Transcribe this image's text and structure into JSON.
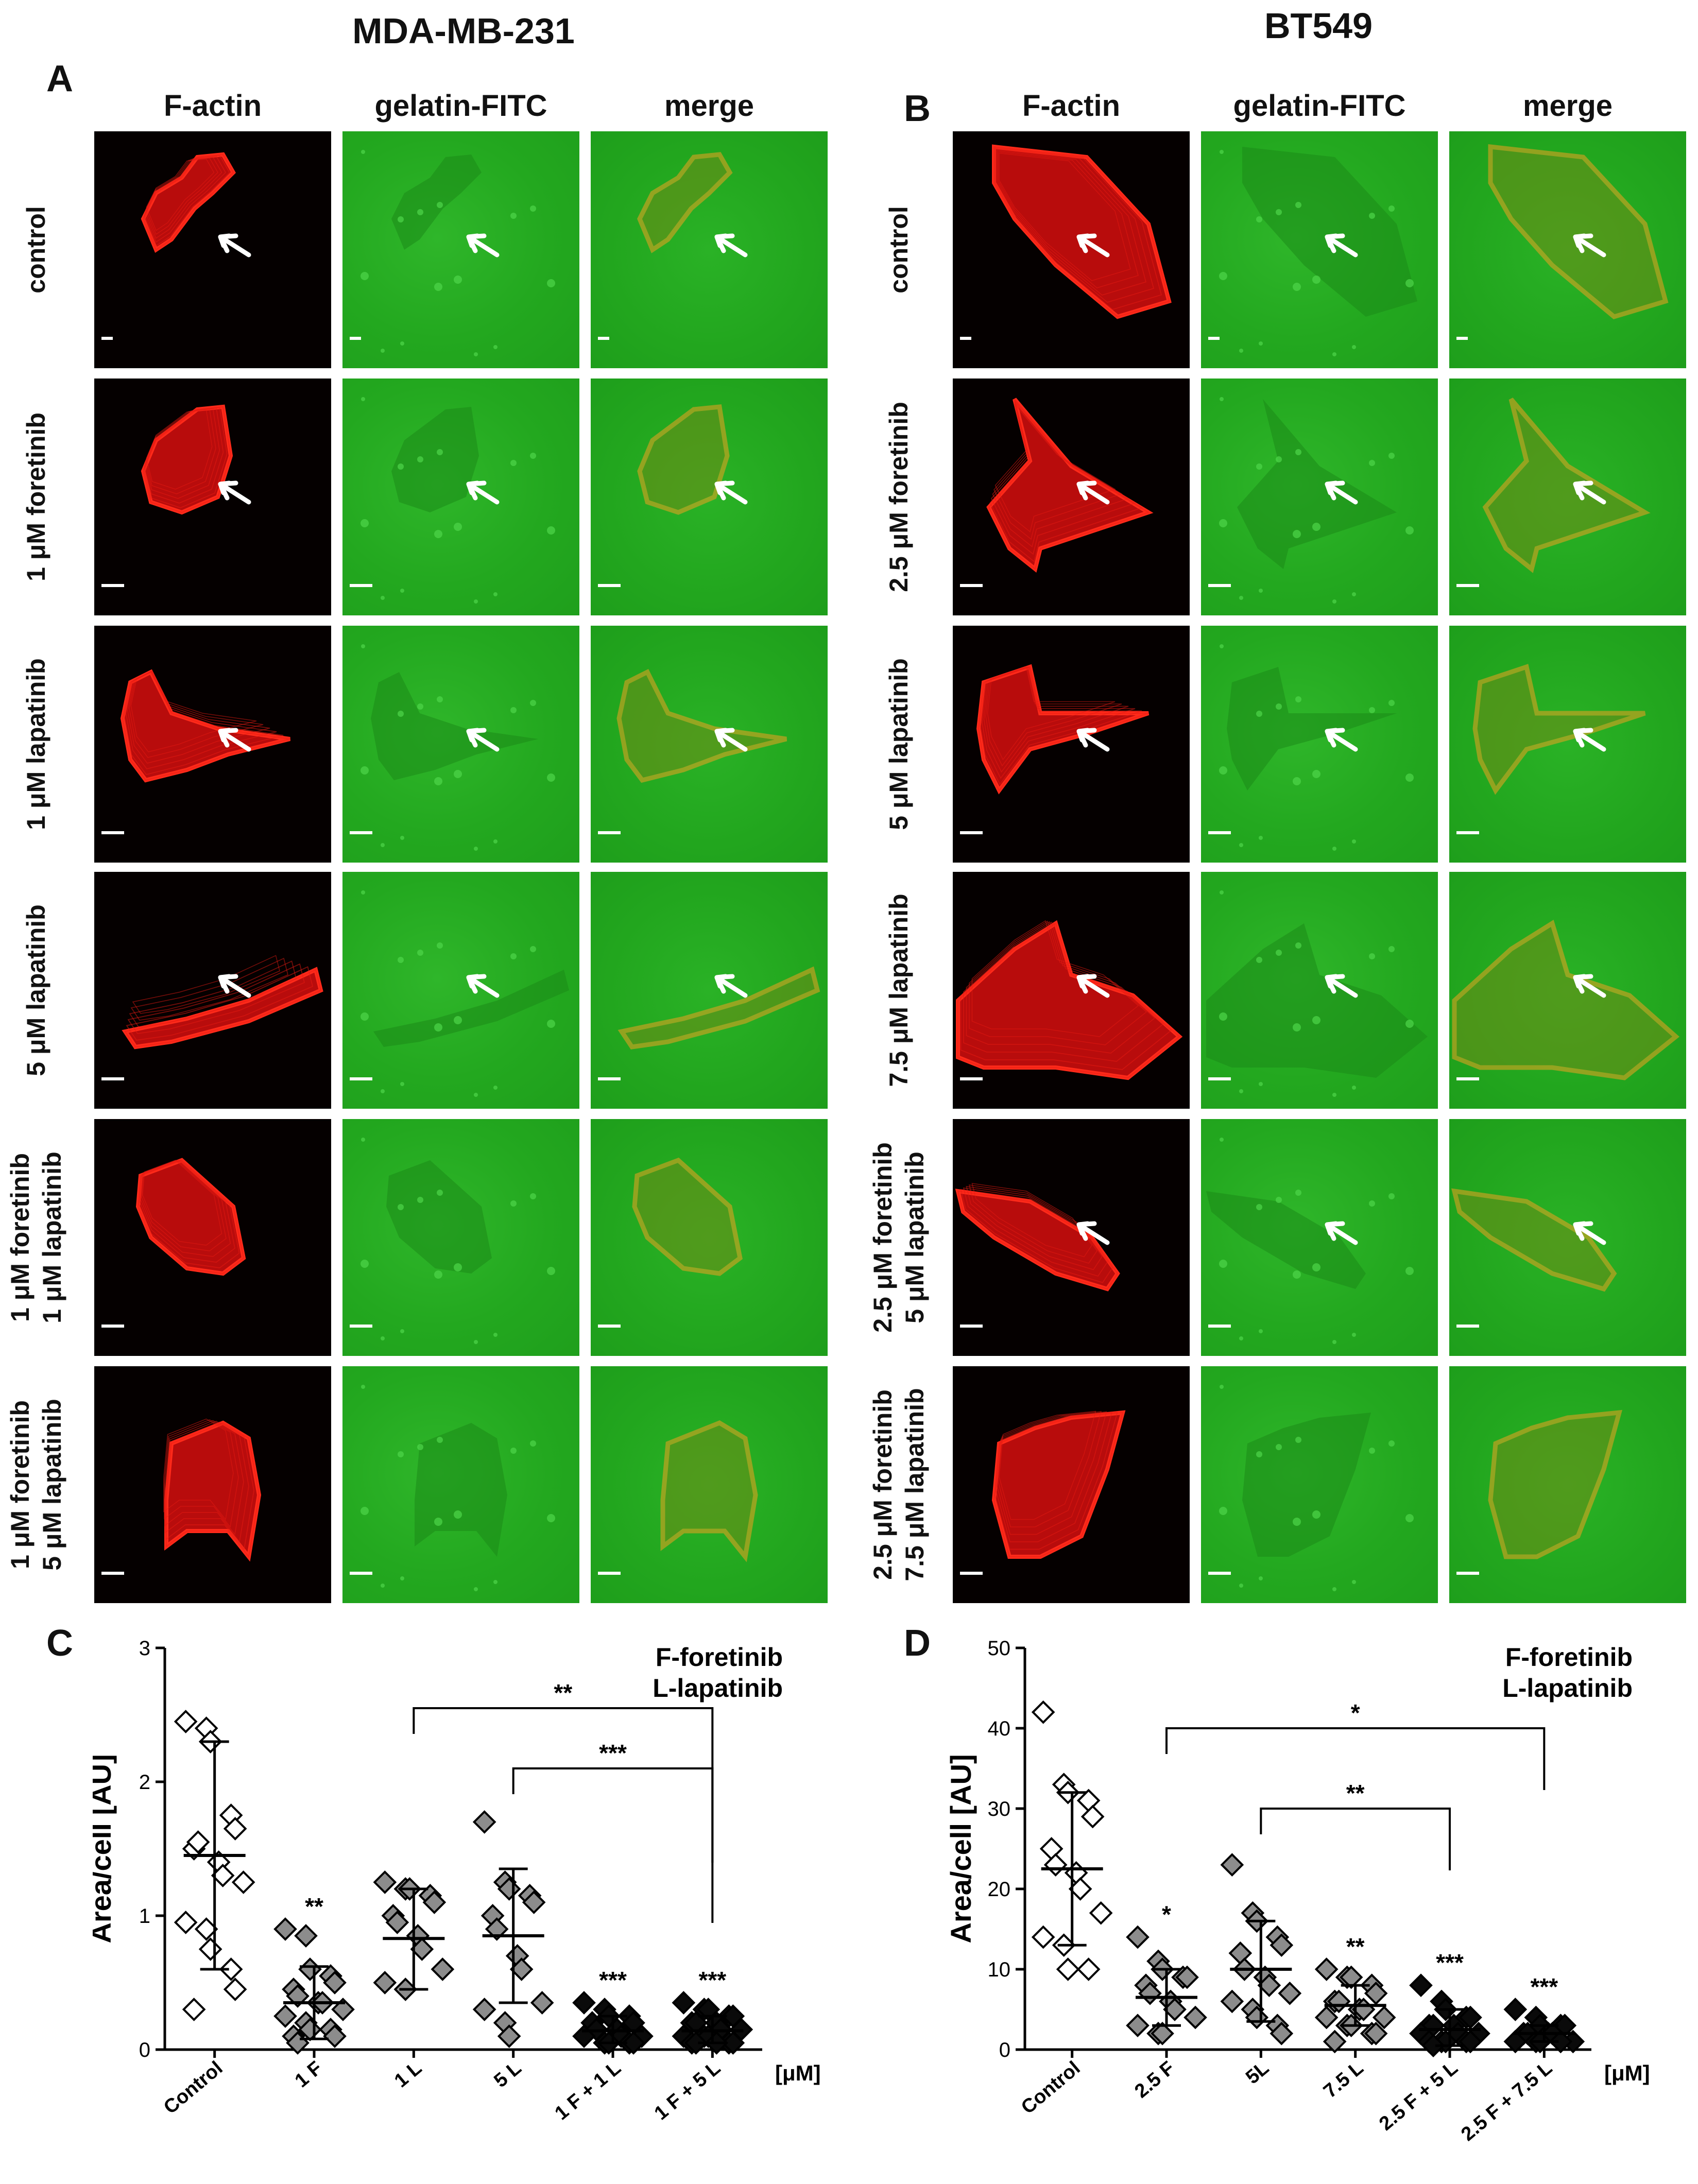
{
  "panelA": {
    "cell_line": "MDA-MB-231",
    "letter": "A",
    "columns": [
      "F-actin",
      "gelatin-FITC",
      "merge"
    ],
    "rows": [
      {
        "label": [
          "control"
        ],
        "arrow": true
      },
      {
        "label": [
          "1 μM foretinib"
        ],
        "arrow": true
      },
      {
        "label": [
          "1 μM lapatinib"
        ],
        "arrow": true
      },
      {
        "label": [
          "5 μM lapatinib"
        ],
        "arrow": true
      },
      {
        "label": [
          "1 μM  foretinib",
          "1 μM lapatinib"
        ],
        "arrow": false
      },
      {
        "label": [
          "1 μM foretinib",
          "5 μM lapatinib"
        ],
        "arrow": false
      }
    ]
  },
  "panelB": {
    "cell_line": "BT549",
    "letter": "B",
    "columns": [
      "F-actin",
      "gelatin-FITC",
      "merge"
    ],
    "rows": [
      {
        "label": [
          "control"
        ],
        "arrow": true
      },
      {
        "label": [
          "2.5 μM foretinib"
        ],
        "arrow": true
      },
      {
        "label": [
          "5 μM lapatinib"
        ],
        "arrow": true
      },
      {
        "label": [
          "7.5 μM lapatinib"
        ],
        "arrow": true
      },
      {
        "label": [
          "2.5 μM  foretinib",
          "5 μM lapatinib"
        ],
        "arrow": true
      },
      {
        "label": [
          "2.5 μM foretinib",
          "7.5 μM lapatinib"
        ],
        "arrow": false
      }
    ]
  },
  "chart_data": [
    {
      "panel": "C",
      "type": "scatter",
      "ylabel": "Area/cell [AU]",
      "ylim": [
        0,
        3
      ],
      "yticks": [
        0,
        1,
        2,
        3
      ],
      "categories": [
        "Control",
        "1 F",
        "1 L",
        "5 L",
        "1 F + 1 L",
        "1 F + 5 L"
      ],
      "unit_label": "[μM]",
      "legend": [
        "F-foretinib",
        "L-lapatinib"
      ],
      "series": [
        {
          "marker": "open",
          "values": [
            2.45,
            2.4,
            2.3,
            1.75,
            1.65,
            1.5,
            1.55,
            1.4,
            1.3,
            1.25,
            0.95,
            0.9,
            0.75,
            0.6,
            0.45,
            0.3
          ]
        },
        {
          "marker": "gray",
          "values": [
            0.9,
            0.85,
            0.6,
            0.55,
            0.5,
            0.45,
            0.4,
            0.35,
            0.35,
            0.3,
            0.25,
            0.2,
            0.15,
            0.15,
            0.1,
            0.1,
            0.05
          ]
        },
        {
          "marker": "gray",
          "values": [
            1.25,
            1.2,
            1.2,
            1.15,
            1.1,
            1.0,
            0.95,
            0.85,
            0.75,
            0.6,
            0.5,
            0.45
          ]
        },
        {
          "marker": "gray",
          "values": [
            1.7,
            1.25,
            1.2,
            1.15,
            1.1,
            1.0,
            0.9,
            0.7,
            0.6,
            0.35,
            0.3,
            0.2,
            0.1
          ]
        },
        {
          "marker": "black",
          "values": [
            0.35,
            0.3,
            0.25,
            0.25,
            0.2,
            0.2,
            0.15,
            0.15,
            0.1,
            0.1,
            0.1,
            0.05,
            0.05,
            0.05,
            0.05
          ]
        },
        {
          "marker": "black",
          "values": [
            0.35,
            0.3,
            0.3,
            0.25,
            0.25,
            0.2,
            0.2,
            0.2,
            0.15,
            0.15,
            0.1,
            0.1,
            0.1,
            0.05,
            0.05,
            0.05,
            0.05,
            0.05
          ]
        }
      ],
      "mean": [
        1.45,
        0.35,
        0.83,
        0.85,
        0.14,
        0.14
      ],
      "sd": [
        [
          0.6,
          2.3
        ],
        [
          0.08,
          0.62
        ],
        [
          0.45,
          1.2
        ],
        [
          0.35,
          1.35
        ],
        [
          0.05,
          0.25
        ],
        [
          0.05,
          0.25
        ]
      ],
      "point_labels": [
        "",
        "**",
        "",
        "",
        "***",
        "***"
      ],
      "brackets": [
        {
          "from": 2,
          "to": 5,
          "y": 2.55,
          "label": "**"
        },
        {
          "from": 3,
          "to": 5,
          "y": 2.1,
          "label": "***"
        }
      ]
    },
    {
      "panel": "D",
      "type": "scatter",
      "ylabel": "Area/cell [AU]",
      "ylim": [
        0,
        50
      ],
      "yticks": [
        0,
        10,
        20,
        30,
        40,
        50
      ],
      "categories": [
        "Control",
        "2.5 F",
        "5L",
        "7.5 L",
        "2.5 F + 5 L",
        "2.5 F + 7.5 L"
      ],
      "unit_label": "[μM]",
      "legend": [
        "F-foretinib",
        "L-lapatinib"
      ],
      "series": [
        {
          "marker": "open",
          "values": [
            42,
            33,
            32,
            31,
            29,
            25,
            23,
            22,
            20,
            17,
            14,
            13,
            10,
            10
          ]
        },
        {
          "marker": "gray",
          "values": [
            14,
            11,
            10,
            9,
            9,
            8,
            7,
            6,
            5,
            4,
            3,
            2,
            2
          ]
        },
        {
          "marker": "gray",
          "values": [
            23,
            17,
            16,
            14,
            13,
            12,
            10,
            9,
            8,
            7,
            6,
            5,
            4,
            3,
            2
          ]
        },
        {
          "marker": "gray",
          "values": [
            10,
            9,
            9,
            8,
            7,
            6,
            6,
            5,
            5,
            4,
            4,
            3,
            3,
            2,
            2,
            1
          ]
        },
        {
          "marker": "black",
          "values": [
            8,
            6,
            5,
            4,
            4,
            3,
            3,
            3,
            2,
            2,
            2,
            1,
            1,
            1,
            1,
            1,
            0.5
          ]
        },
        {
          "marker": "black",
          "values": [
            5,
            4,
            3,
            3,
            3,
            2,
            2,
            2,
            2,
            1,
            1,
            1,
            1,
            1
          ]
        }
      ],
      "mean": [
        22.5,
        6.5,
        10,
        5.5,
        2.5,
        2
      ],
      "sd": [
        [
          13,
          32
        ],
        [
          3,
          10
        ],
        [
          3.5,
          16
        ],
        [
          3,
          8
        ],
        [
          0.5,
          5
        ],
        [
          1,
          3
        ]
      ],
      "point_labels": [
        "",
        "*",
        "",
        "**",
        "***",
        "***"
      ],
      "brackets": [
        {
          "from": 1,
          "to": 5,
          "y": 40,
          "label": "*"
        },
        {
          "from": 2,
          "to": 4,
          "y": 30,
          "label": "**"
        }
      ]
    }
  ]
}
